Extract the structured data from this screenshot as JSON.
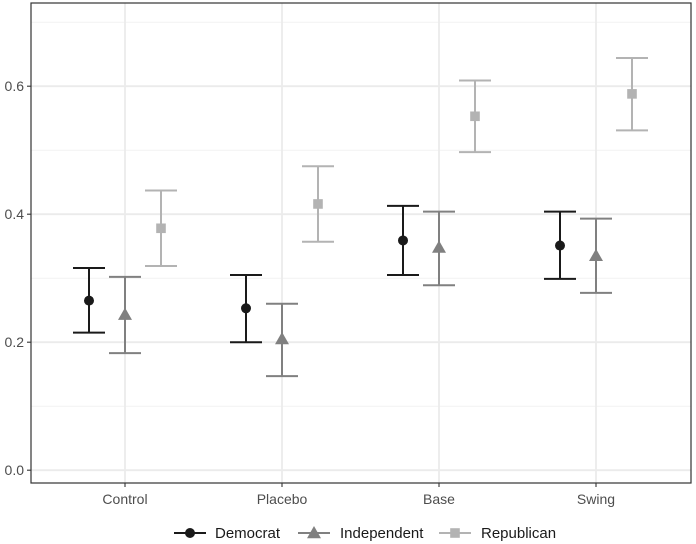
{
  "chart_data": {
    "type": "scatter",
    "subtype": "point-with-errorbars",
    "title": "",
    "xlabel": "",
    "ylabel": "",
    "categories": [
      "Control",
      "Placebo",
      "Base",
      "Swing"
    ],
    "ylim": [
      -0.02,
      0.73
    ],
    "yticks": [
      0.0,
      0.2,
      0.4,
      0.6
    ],
    "ytick_labels": [
      "0.0",
      "0.2",
      "0.4",
      "0.6"
    ],
    "grid": true,
    "legend_position": "bottom",
    "series": [
      {
        "name": "Democrat",
        "marker": "circle",
        "color": "#1a1a1a",
        "values": [
          0.265,
          0.253,
          0.359,
          0.351
        ],
        "lower": [
          0.215,
          0.2,
          0.305,
          0.299
        ],
        "upper": [
          0.316,
          0.305,
          0.413,
          0.404
        ]
      },
      {
        "name": "Independent",
        "marker": "triangle",
        "color": "#808080",
        "values": [
          0.243,
          0.205,
          0.348,
          0.335
        ],
        "lower": [
          0.183,
          0.147,
          0.289,
          0.277
        ],
        "upper": [
          0.302,
          0.26,
          0.404,
          0.393
        ]
      },
      {
        "name": "Republican",
        "marker": "square",
        "color": "#b3b3b3",
        "values": [
          0.378,
          0.416,
          0.553,
          0.588
        ],
        "lower": [
          0.319,
          0.357,
          0.497,
          0.531
        ],
        "upper": [
          0.437,
          0.475,
          0.609,
          0.644
        ]
      }
    ]
  }
}
